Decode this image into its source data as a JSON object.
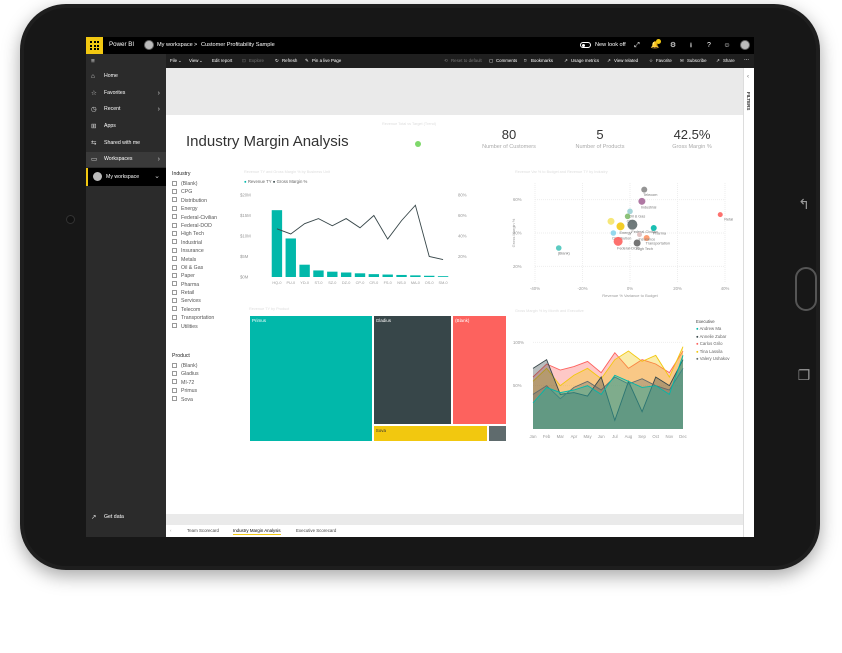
{
  "topbar": {
    "app_name": "Power BI",
    "workspace": "My workspace",
    "separator": ">",
    "report_name": "Customer Profitability Sample",
    "new_look_label": "New look off"
  },
  "sidebar": {
    "items": [
      {
        "label": "Home",
        "icon": "home-icon"
      },
      {
        "label": "Favorites",
        "icon": "star-icon"
      },
      {
        "label": "Recent",
        "icon": "clock-icon"
      },
      {
        "label": "Apps",
        "icon": "apps-icon"
      },
      {
        "label": "Shared with me",
        "icon": "share-icon"
      },
      {
        "label": "Workspaces",
        "icon": "workspaces-icon"
      },
      {
        "label": "My workspace",
        "icon": "avatar-icon"
      }
    ],
    "get_data": "Get data"
  },
  "commandbar": {
    "file": "File",
    "view": "View",
    "edit": "Edit report",
    "explore": "Explore",
    "refresh": "Refresh",
    "pin": "Pin a live Page",
    "reset": "Reset to default",
    "comments": "Comments",
    "bookmarks": "Bookmarks",
    "usage": "Usage metrics",
    "related": "View related",
    "favorite": "Favorite",
    "subscribe": "Subscribe",
    "share": "Share",
    "more": "..."
  },
  "filters_label": "FILTERS",
  "report": {
    "title": "Industry Margin Analysis",
    "scatter_small_title": "Revenue Total vs Target (Trend)",
    "cards": [
      {
        "value": "80",
        "label": "Number of Customers"
      },
      {
        "value": "5",
        "label": "Number of Products"
      },
      {
        "value": "42.5%",
        "label": "Gross Margin %"
      }
    ]
  },
  "industry_slicer": {
    "title": "Industry",
    "items": [
      "(Blank)",
      "CPG",
      "Distribution",
      "Energy",
      "Federal-Civilian",
      "Federal-DOD",
      "High Tech",
      "Industrial",
      "Insurance",
      "Metals",
      "Oil & Gas",
      "Paper",
      "Pharma",
      "Retail",
      "Services",
      "Telecom",
      "Transportation",
      "Utilities"
    ]
  },
  "product_slicer": {
    "title": "Product",
    "items": [
      "(Blank)",
      "Gladius",
      "MI-72",
      "Primus",
      "Sova"
    ]
  },
  "tabs": [
    "Team Scorecard",
    "Industry Margin Analysis",
    "Executive Scorecard"
  ],
  "chart_data": [
    {
      "type": "bar",
      "title": "Revenue TY and Gross Margin % by Business Unit",
      "legend": [
        "Revenue TY",
        "Gross Margin %"
      ],
      "categories": [
        "HQ-0",
        "PU-0",
        "YD-0",
        "ST-0",
        "SZ-0",
        "DZ-0",
        "CP-0",
        "CR-0",
        "FS-0",
        "NS-0",
        "MA-0",
        "OS-0",
        "SM-0"
      ],
      "series": [
        {
          "name": "Revenue TY",
          "values": [
            16.3,
            9.4,
            3.0,
            1.6,
            1.3,
            1.1,
            0.9,
            0.7,
            0.6,
            0.5,
            0.4,
            0.3,
            0.2
          ]
        },
        {
          "name": "Gross Margin %",
          "values": [
            47,
            42,
            52,
            57,
            50,
            57,
            48,
            60,
            37,
            55,
            70,
            20,
            17
          ]
        }
      ],
      "y_ticks": [
        "$0M",
        "$5M",
        "$10M",
        "$15M",
        "$20M"
      ],
      "y2_ticks": [
        "20%",
        "40%",
        "60%",
        "80%"
      ],
      "ylim": [
        0,
        20
      ],
      "y2lim": [
        0,
        80
      ],
      "colors": {
        "bar": "#01b8aa",
        "line": "#374649"
      }
    },
    {
      "type": "scatter",
      "title": "Revenue Var % to Budget and Revenue TY by Industry",
      "xlabel": "Revenue % Variance to Budget",
      "ylabel": "Gross Margin %",
      "x_ticks": [
        "-40%",
        "-20%",
        "0%",
        "20%",
        "40%"
      ],
      "y_ticks": [
        "20%",
        "40%",
        "60%"
      ],
      "xlim": [
        -40,
        40
      ],
      "ylim": [
        10,
        70
      ],
      "points": [
        {
          "label": "Telecom",
          "x": 6,
          "y": 66,
          "r": 3,
          "color": "#8a8a8a"
        },
        {
          "label": "Industrial",
          "x": 5,
          "y": 59,
          "r": 3.5,
          "color": "#a66999"
        },
        {
          "label": "Oil & Gas",
          "x": 0,
          "y": 53,
          "r": 2.8,
          "color": "#9bd0d4"
        },
        {
          "label": "CPG",
          "x": -1,
          "y": 50,
          "r": 2.8,
          "color": "#7fba6a"
        },
        {
          "label": "Retail",
          "x": 38,
          "y": 51,
          "r": 2.5,
          "color": "#fd625e"
        },
        {
          "label": "Energy",
          "x": -4,
          "y": 44,
          "r": 4,
          "color": "#f2c80f"
        },
        {
          "label": "Federal-Civilian",
          "x": 1,
          "y": 45,
          "r": 5,
          "color": "#5f6b6d"
        },
        {
          "label": "Pharma",
          "x": 10,
          "y": 43,
          "r": 3,
          "color": "#01b8aa"
        },
        {
          "label": "Distribution",
          "x": -7,
          "y": 40,
          "r": 2.8,
          "color": "#8ad4eb"
        },
        {
          "label": "Transportation",
          "x": 7,
          "y": 37,
          "r": 3,
          "color": "#fe9666"
        },
        {
          "label": "High Tech",
          "x": 3,
          "y": 34,
          "r": 3.5,
          "color": "#666666"
        },
        {
          "label": "Federal-DOD",
          "x": -5,
          "y": 35,
          "r": 4.5,
          "color": "#fd625e"
        },
        {
          "label": "Insurance",
          "x": 4,
          "y": 39,
          "r": 2.5,
          "color": "#dfbfbf"
        },
        {
          "label": "(Blank)",
          "x": -30,
          "y": 31,
          "r": 2.8,
          "color": "#4ac5bb"
        },
        {
          "label": "",
          "x": -8,
          "y": 47,
          "r": 3.5,
          "color": "#f5e46a"
        }
      ]
    },
    {
      "type": "treemap",
      "title": "Revenue TY by Product",
      "items": [
        {
          "label": "Primus",
          "value": 47,
          "color": "#01b8aa"
        },
        {
          "label": "Gladius",
          "value": 26,
          "color": "#374649"
        },
        {
          "label": "(Blank)",
          "value": 18,
          "color": "#fd625e"
        },
        {
          "label": "Sova",
          "value": 6,
          "color": "#f2c80f"
        },
        {
          "label": "",
          "value": 1,
          "color": "#5f6b6d"
        }
      ]
    },
    {
      "type": "area",
      "title": "Gross Margin % by Month and Executive",
      "categories": [
        "Jan",
        "Feb",
        "Mar",
        "Apr",
        "May",
        "Jun",
        "Jul",
        "Aug",
        "Sep",
        "Oct",
        "Nov",
        "Dec"
      ],
      "y_ticks": [
        "50%",
        "100%"
      ],
      "ylim": [
        0,
        120
      ],
      "legend_title": "Executive",
      "series": [
        {
          "name": "Andrew Ma",
          "color": "#01b8aa",
          "values": [
            30,
            48,
            42,
            45,
            50,
            40,
            62,
            55,
            48,
            50,
            40,
            85
          ]
        },
        {
          "name": "Annelie Zubar",
          "color": "#374649",
          "values": [
            70,
            80,
            40,
            42,
            38,
            60,
            10,
            55,
            20,
            60,
            50,
            80
          ]
        },
        {
          "name": "Carlos Grilo",
          "color": "#fd625e",
          "values": [
            60,
            75,
            68,
            72,
            78,
            65,
            88,
            70,
            80,
            75,
            65,
            90
          ]
        },
        {
          "name": "Tina Lassila",
          "color": "#f2c80f",
          "values": [
            55,
            70,
            50,
            62,
            70,
            58,
            80,
            90,
            78,
            85,
            60,
            95
          ]
        },
        {
          "name": "Valery Ushakov",
          "color": "#5f6b6d",
          "values": [
            40,
            50,
            35,
            48,
            55,
            45,
            60,
            52,
            58,
            50,
            45,
            70
          ]
        }
      ]
    }
  ]
}
